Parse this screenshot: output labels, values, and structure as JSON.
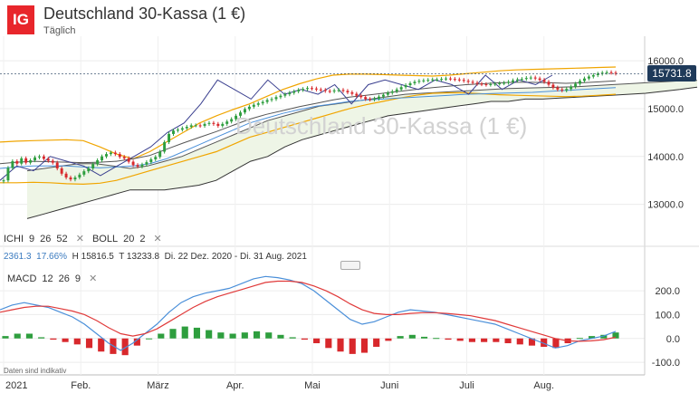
{
  "header": {
    "logo": "IG",
    "title": "Deutschland 30-Kassa (1 €)",
    "subtitle": "Täglich",
    "watermark": "Deutschland 30-Kassa (1 €)"
  },
  "price_label": "15731.8",
  "indicators": {
    "ichi": {
      "label": "ICHI",
      "p1": "9",
      "p2": "26",
      "p3": "52"
    },
    "boll": {
      "label": "BOLL",
      "p1": "20",
      "p2": "2"
    },
    "macd": {
      "label": "MACD",
      "p1": "12",
      "p2": "26",
      "p3": "9"
    },
    "close_glyph": "✕"
  },
  "stats": {
    "change": "2361.3",
    "pct": "17.66%",
    "high": "H 15816.5",
    "low": "T 13233.8",
    "range": "Di. 22 Dez. 2020 - Di. 31 Aug. 2021"
  },
  "note": "Daten sind indikativ",
  "colors": {
    "up": "#2e9e3e",
    "down": "#d8282c",
    "boll": "#f0a500",
    "ichi": "#3a3f8f",
    "kijun": "#4a90d9",
    "signal": "#e03a3a",
    "macd": "#4a8fd9",
    "cloud": "#eef5e6"
  },
  "chart_data": [
    {
      "type": "candlestick",
      "ylim": [
        12500,
        16400
      ],
      "yticks": [
        "16000.0",
        "15000.0",
        "14000.0",
        "13000.0"
      ],
      "ytick_values": [
        16000,
        15000,
        14000,
        13000
      ],
      "x_labels": [
        "2021",
        "Feb.",
        "März",
        "Apr.",
        "Mai",
        "Juni",
        "Juli",
        "Aug."
      ],
      "x_label_days": [
        0,
        30,
        60,
        90,
        120,
        150,
        180,
        210
      ],
      "close": [
        13500,
        13760,
        13900,
        13850,
        13960,
        13870,
        13920,
        13980,
        14000,
        13950,
        13910,
        13870,
        13750,
        13640,
        13560,
        13520,
        13560,
        13620,
        13690,
        13750,
        13840,
        13920,
        14000,
        14050,
        14080,
        14050,
        13990,
        13960,
        13890,
        13820,
        13790,
        13830,
        13880,
        13940,
        13990,
        14100,
        14300,
        14470,
        14540,
        14560,
        14590,
        14620,
        14650,
        14650,
        14640,
        14680,
        14700,
        14680,
        14640,
        14680,
        14730,
        14780,
        14850,
        14920,
        14990,
        15040,
        15080,
        15110,
        15140,
        15180,
        15200,
        15240,
        15270,
        15300,
        15330,
        15360,
        15390,
        15410,
        15430,
        15420,
        15400,
        15390,
        15370,
        15360,
        15380,
        15390,
        15370,
        15340,
        15310,
        15270,
        15240,
        15200,
        15190,
        15210,
        15250,
        15290,
        15330,
        15360,
        15400,
        15450,
        15490,
        15530,
        15560,
        15580,
        15590,
        15600,
        15610,
        15610,
        15620,
        15630,
        15620,
        15610,
        15600,
        15580,
        15560,
        15540,
        15520,
        15510,
        15500,
        15510,
        15520,
        15530,
        15540,
        15560,
        15590,
        15610,
        15620,
        15640,
        15650,
        15630,
        15600,
        15560,
        15500,
        15440,
        15400,
        15380,
        15410,
        15460,
        15520,
        15580,
        15630,
        15670,
        15700,
        15730,
        15750,
        15760,
        15750,
        15731.8
      ],
      "bollinger": {
        "upper": [
          14300,
          14320,
          14330,
          14340,
          14350,
          14330,
          14200,
          14050,
          13950,
          14100,
          14300,
          14500,
          14700,
          14850,
          14980,
          15100,
          15250,
          15400,
          15520,
          15620,
          15700,
          15720,
          15720,
          15710,
          15700,
          15690,
          15680,
          15700,
          15730,
          15760,
          15790,
          15810,
          15820,
          15830,
          15840,
          15850,
          15860,
          15870
        ],
        "middle": [
          13850,
          13880,
          13900,
          13890,
          13880,
          13870,
          13880,
          13900,
          13950,
          14020,
          14150,
          14280,
          14400,
          14520,
          14650,
          14780,
          14880,
          14960,
          15040,
          15110,
          15180,
          15240,
          15280,
          15320,
          15360,
          15400,
          15440,
          15470,
          15500,
          15520,
          15540,
          15550,
          15550,
          15540,
          15530,
          15540,
          15560,
          15580
        ],
        "lower": [
          13450,
          13450,
          13460,
          13450,
          13430,
          13420,
          13440,
          13500,
          13600,
          13700,
          13800,
          13900,
          14000,
          14100,
          14250,
          14400,
          14500,
          14600,
          14700,
          14800,
          14900,
          15000,
          15080,
          15150,
          15220,
          15280,
          15320,
          15330,
          15330,
          15310,
          15290,
          15280,
          15270,
          15260,
          15250,
          15260,
          15280,
          15300
        ]
      },
      "ichimoku": {
        "chikou": [
          13500,
          13800,
          13700,
          14000,
          13900,
          13800,
          13600,
          13800,
          14000,
          14200,
          14500,
          14700,
          15100,
          15600,
          15400,
          15200,
          15600,
          15300,
          15400,
          15300,
          15500,
          15100,
          15500,
          15600,
          15500,
          15400,
          15600,
          15500,
          15300,
          15700,
          15400,
          15600,
          15500,
          15700
        ],
        "span_a": [
          13700,
          13750,
          13800,
          13850,
          13850,
          13800,
          13750,
          13800,
          13900,
          14000,
          14150,
          14300,
          14450,
          14600,
          14750,
          14850,
          14950,
          15050,
          15100,
          15150,
          15200,
          15250,
          15300,
          15320,
          15340,
          15360,
          15380,
          15400,
          15420,
          15430,
          15440,
          15450,
          15460,
          15480,
          15500,
          15520,
          15540,
          15560,
          15580,
          15590
        ],
        "span_b": [
          12700,
          12800,
          12900,
          13000,
          13100,
          13200,
          13300,
          13300,
          13300,
          13350,
          13400,
          13500,
          13700,
          13900,
          14000,
          14200,
          14350,
          14450,
          14550,
          14650,
          14750,
          14850,
          14900,
          14950,
          15000,
          15050,
          15100,
          15150,
          15150,
          15200,
          15200,
          15220,
          15240,
          15260,
          15280,
          15300,
          15320,
          15360,
          15400,
          15450
        ],
        "kijun": [
          13750,
          13780,
          13800,
          13800,
          13800,
          13780,
          13760,
          13780,
          13800,
          13850,
          13950,
          14100,
          14250,
          14400,
          14550,
          14700,
          14800,
          14900,
          14980,
          15050,
          15100,
          15150,
          15180,
          15200,
          15220,
          15240,
          15260,
          15280,
          15300,
          15310,
          15320,
          15330,
          15340,
          15360,
          15380,
          15400,
          15420,
          15440
        ]
      }
    },
    {
      "type": "macd",
      "ylim": [
        -130,
        280
      ],
      "yticks": [
        "200.0",
        "100.0",
        "0.0",
        "-100.0"
      ],
      "ytick_values": [
        200,
        100,
        0,
        -100
      ],
      "macd": [
        120,
        140,
        150,
        140,
        130,
        110,
        90,
        60,
        20,
        -20,
        -50,
        -20,
        20,
        60,
        110,
        150,
        175,
        190,
        200,
        210,
        230,
        250,
        260,
        255,
        245,
        230,
        200,
        160,
        120,
        80,
        60,
        70,
        90,
        110,
        120,
        115,
        110,
        100,
        90,
        80,
        70,
        60,
        40,
        20,
        0,
        -20,
        -40,
        -30,
        -10,
        0,
        10,
        30
      ],
      "signal": [
        110,
        120,
        130,
        135,
        135,
        125,
        115,
        100,
        75,
        45,
        20,
        10,
        20,
        40,
        70,
        100,
        130,
        155,
        175,
        190,
        205,
        220,
        235,
        240,
        240,
        235,
        220,
        200,
        175,
        145,
        120,
        105,
        100,
        100,
        105,
        108,
        108,
        105,
        100,
        95,
        85,
        75,
        60,
        45,
        30,
        15,
        0,
        -10,
        -12,
        -10,
        -5,
        5
      ],
      "histogram": [
        10,
        20,
        20,
        5,
        -5,
        -15,
        -25,
        -40,
        -55,
        -65,
        -70,
        -30,
        0,
        20,
        40,
        50,
        45,
        35,
        25,
        20,
        25,
        30,
        25,
        15,
        5,
        -5,
        -20,
        -40,
        -55,
        -65,
        -60,
        -35,
        -10,
        10,
        15,
        7,
        2,
        -5,
        -10,
        -15,
        -15,
        -15,
        -20,
        -25,
        -30,
        -35,
        -40,
        -20,
        2,
        10,
        15,
        25
      ]
    }
  ]
}
